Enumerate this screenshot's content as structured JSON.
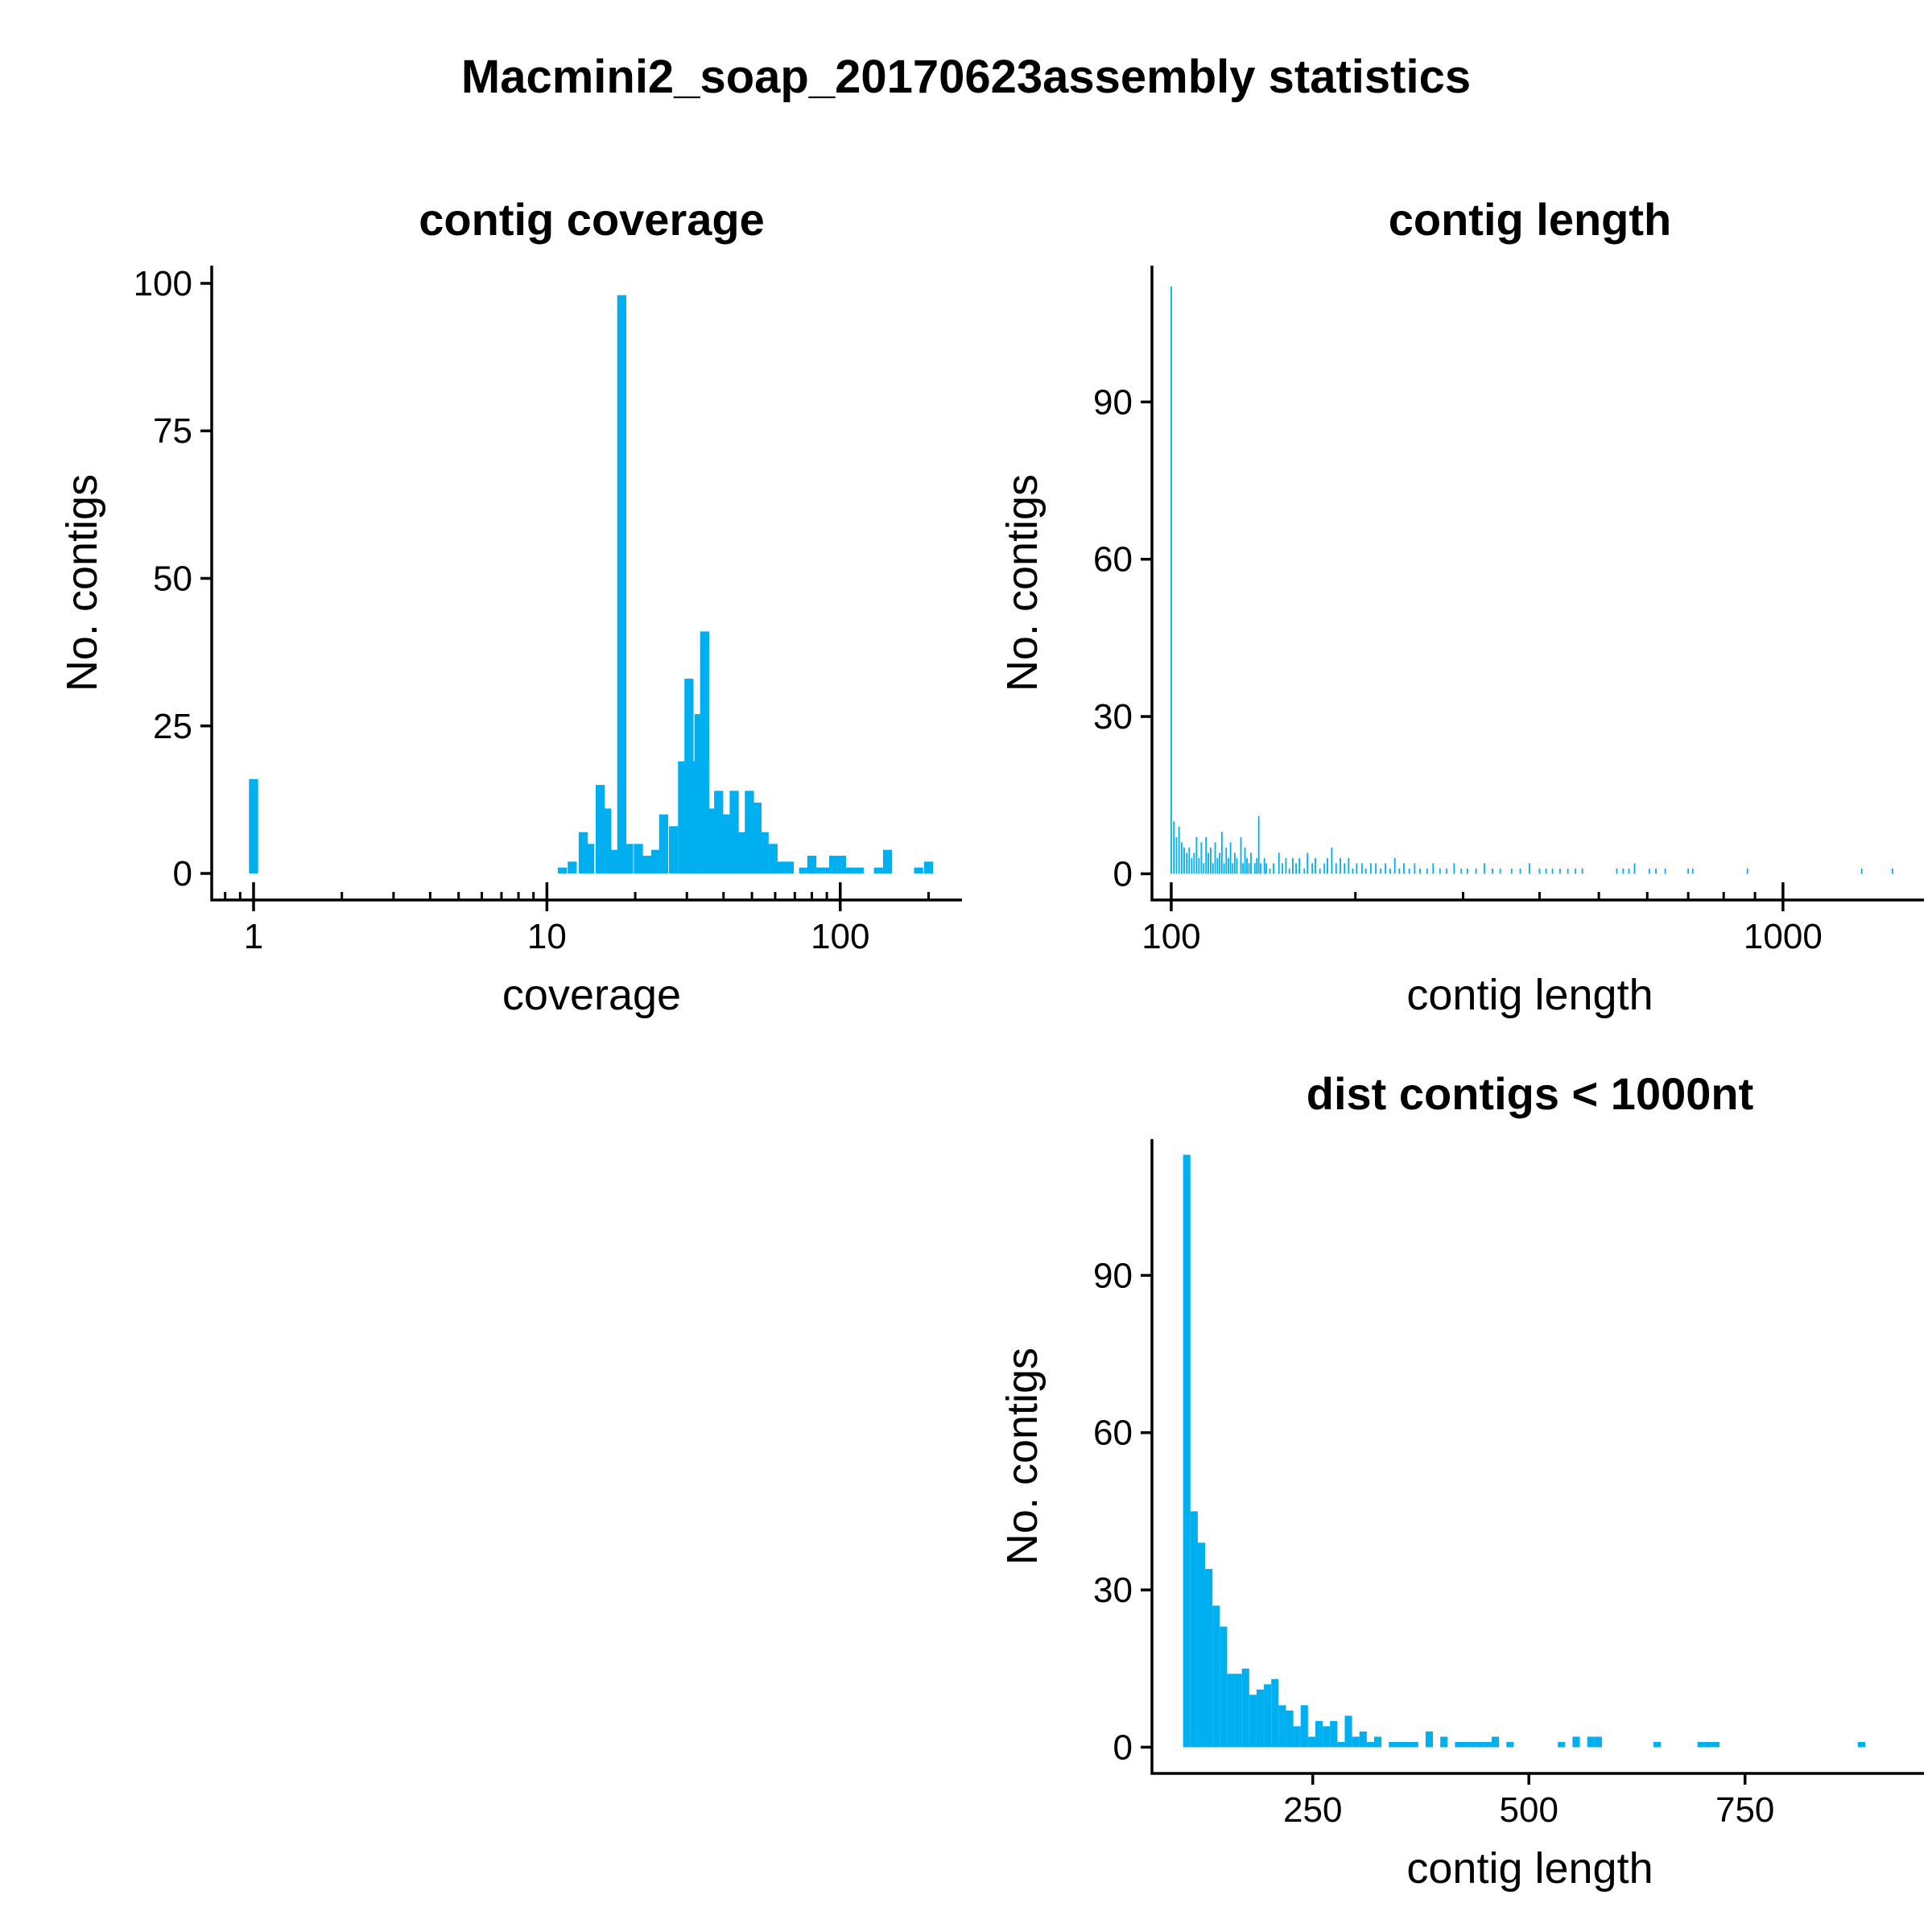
{
  "title": "Macmini2_soap_20170623assembly statistics",
  "colors": {
    "bar": "#00AFEF",
    "axis": "#000000"
  },
  "chart_data": [
    {
      "id": "coverage",
      "type": "bar",
      "title": "contig coverage",
      "xlabel": "coverage",
      "ylabel": "No. contigs",
      "xscale": "log10",
      "xlim": [
        0.72,
        260
      ],
      "ylim": [
        -4.5,
        103
      ],
      "xticks": [
        {
          "value": 1,
          "label": "1"
        },
        {
          "value": 10,
          "label": "10"
        },
        {
          "value": 100,
          "label": "100"
        }
      ],
      "yticks": [
        {
          "value": 0,
          "label": "0"
        },
        {
          "value": 25,
          "label": "25"
        },
        {
          "value": 50,
          "label": "50"
        },
        {
          "value": 75,
          "label": "75"
        },
        {
          "value": 100,
          "label": "100"
        }
      ],
      "minor_xticks": [
        0.8,
        0.9,
        2,
        3,
        4,
        5,
        6,
        7,
        8,
        9,
        20,
        30,
        40,
        50,
        60,
        70,
        80,
        90,
        200
      ],
      "bins": [
        {
          "x": 1.0,
          "count": 16
        },
        {
          "x": 11.3,
          "count": 1
        },
        {
          "x": 12.2,
          "count": 2
        },
        {
          "x": 13.3,
          "count": 7
        },
        {
          "x": 14.0,
          "count": 5
        },
        {
          "x": 15.2,
          "count": 15
        },
        {
          "x": 16.0,
          "count": 11
        },
        {
          "x": 17.0,
          "count": 4
        },
        {
          "x": 18.0,
          "count": 98
        },
        {
          "x": 19.0,
          "count": 5
        },
        {
          "x": 20.5,
          "count": 5
        },
        {
          "x": 22.0,
          "count": 3
        },
        {
          "x": 23.5,
          "count": 4
        },
        {
          "x": 25.0,
          "count": 10
        },
        {
          "x": 27.0,
          "count": 8
        },
        {
          "x": 29.0,
          "count": 19
        },
        {
          "x": 30.5,
          "count": 33
        },
        {
          "x": 31.8,
          "count": 19
        },
        {
          "x": 33.0,
          "count": 27
        },
        {
          "x": 34.5,
          "count": 41
        },
        {
          "x": 36.0,
          "count": 11
        },
        {
          "x": 38.5,
          "count": 14
        },
        {
          "x": 41.0,
          "count": 10
        },
        {
          "x": 43.5,
          "count": 14
        },
        {
          "x": 46.0,
          "count": 7
        },
        {
          "x": 49.0,
          "count": 14
        },
        {
          "x": 52.0,
          "count": 12
        },
        {
          "x": 55.0,
          "count": 7
        },
        {
          "x": 59.0,
          "count": 5
        },
        {
          "x": 63.0,
          "count": 2
        },
        {
          "x": 67.0,
          "count": 2
        },
        {
          "x": 75.0,
          "count": 1
        },
        {
          "x": 80.0,
          "count": 3
        },
        {
          "x": 85.0,
          "count": 1
        },
        {
          "x": 90.0,
          "count": 1
        },
        {
          "x": 95.0,
          "count": 3
        },
        {
          "x": 101.0,
          "count": 3
        },
        {
          "x": 108.0,
          "count": 1
        },
        {
          "x": 116.0,
          "count": 1
        },
        {
          "x": 135.0,
          "count": 1
        },
        {
          "x": 145.0,
          "count": 4
        },
        {
          "x": 185.0,
          "count": 1
        },
        {
          "x": 200.0,
          "count": 2
        }
      ]
    },
    {
      "id": "length",
      "type": "bar",
      "title": "contig length",
      "xlabel": "contig length",
      "ylabel": "No. contigs",
      "xscale": "log10",
      "xlim": [
        93,
        1700
      ],
      "ylim": [
        -5,
        116
      ],
      "xticks": [
        {
          "value": 100,
          "label": "100"
        },
        {
          "value": 1000,
          "label": "1000"
        }
      ],
      "yticks": [
        {
          "value": 0,
          "label": "0"
        },
        {
          "value": 30,
          "label": "30"
        },
        {
          "value": 60,
          "label": "60"
        },
        {
          "value": 90,
          "label": "90"
        }
      ],
      "minor_xticks": [
        200,
        300,
        400,
        500,
        600,
        700,
        800,
        900
      ],
      "bins": [
        {
          "x": 100,
          "count": 112
        },
        {
          "x": 101,
          "count": 10
        },
        {
          "x": 102,
          "count": 7
        },
        {
          "x": 103,
          "count": 9
        },
        {
          "x": 104,
          "count": 6
        },
        {
          "x": 105,
          "count": 5
        },
        {
          "x": 106,
          "count": 4
        },
        {
          "x": 107,
          "count": 5
        },
        {
          "x": 108,
          "count": 3
        },
        {
          "x": 109,
          "count": 4
        },
        {
          "x": 110,
          "count": 7
        },
        {
          "x": 111,
          "count": 3
        },
        {
          "x": 112,
          "count": 6
        },
        {
          "x": 113,
          "count": 2
        },
        {
          "x": 114,
          "count": 7
        },
        {
          "x": 115,
          "count": 4
        },
        {
          "x": 116,
          "count": 5
        },
        {
          "x": 117,
          "count": 2
        },
        {
          "x": 118,
          "count": 6
        },
        {
          "x": 119,
          "count": 3
        },
        {
          "x": 120,
          "count": 4
        },
        {
          "x": 121,
          "count": 8
        },
        {
          "x": 122,
          "count": 2
        },
        {
          "x": 123,
          "count": 5
        },
        {
          "x": 124,
          "count": 3
        },
        {
          "x": 125,
          "count": 6
        },
        {
          "x": 126,
          "count": 2
        },
        {
          "x": 127,
          "count": 4
        },
        {
          "x": 128,
          "count": 3
        },
        {
          "x": 130,
          "count": 7
        },
        {
          "x": 131,
          "count": 2
        },
        {
          "x": 132,
          "count": 5
        },
        {
          "x": 133,
          "count": 3
        },
        {
          "x": 134,
          "count": 2
        },
        {
          "x": 135,
          "count": 4
        },
        {
          "x": 137,
          "count": 2
        },
        {
          "x": 138,
          "count": 3
        },
        {
          "x": 139,
          "count": 11
        },
        {
          "x": 140,
          "count": 2
        },
        {
          "x": 142,
          "count": 3
        },
        {
          "x": 143,
          "count": 2
        },
        {
          "x": 145,
          "count": 1
        },
        {
          "x": 147,
          "count": 2
        },
        {
          "x": 150,
          "count": 4
        },
        {
          "x": 152,
          "count": 2
        },
        {
          "x": 154,
          "count": 3
        },
        {
          "x": 156,
          "count": 1
        },
        {
          "x": 158,
          "count": 3
        },
        {
          "x": 160,
          "count": 2
        },
        {
          "x": 162,
          "count": 3
        },
        {
          "x": 165,
          "count": 1
        },
        {
          "x": 167,
          "count": 4
        },
        {
          "x": 170,
          "count": 2
        },
        {
          "x": 172,
          "count": 3
        },
        {
          "x": 175,
          "count": 1
        },
        {
          "x": 178,
          "count": 2
        },
        {
          "x": 180,
          "count": 3
        },
        {
          "x": 183,
          "count": 5
        },
        {
          "x": 186,
          "count": 2
        },
        {
          "x": 189,
          "count": 3
        },
        {
          "x": 192,
          "count": 2
        },
        {
          "x": 195,
          "count": 3
        },
        {
          "x": 198,
          "count": 1
        },
        {
          "x": 201,
          "count": 2
        },
        {
          "x": 205,
          "count": 2
        },
        {
          "x": 208,
          "count": 1
        },
        {
          "x": 212,
          "count": 2
        },
        {
          "x": 216,
          "count": 2
        },
        {
          "x": 220,
          "count": 1
        },
        {
          "x": 224,
          "count": 2
        },
        {
          "x": 228,
          "count": 1
        },
        {
          "x": 232,
          "count": 3
        },
        {
          "x": 236,
          "count": 1
        },
        {
          "x": 240,
          "count": 2
        },
        {
          "x": 245,
          "count": 1
        },
        {
          "x": 250,
          "count": 2
        },
        {
          "x": 255,
          "count": 1
        },
        {
          "x": 262,
          "count": 1
        },
        {
          "x": 268,
          "count": 2
        },
        {
          "x": 275,
          "count": 1
        },
        {
          "x": 282,
          "count": 1
        },
        {
          "x": 290,
          "count": 2
        },
        {
          "x": 298,
          "count": 1
        },
        {
          "x": 305,
          "count": 1
        },
        {
          "x": 315,
          "count": 1
        },
        {
          "x": 325,
          "count": 2
        },
        {
          "x": 335,
          "count": 1
        },
        {
          "x": 345,
          "count": 1
        },
        {
          "x": 360,
          "count": 1
        },
        {
          "x": 372,
          "count": 1
        },
        {
          "x": 385,
          "count": 2
        },
        {
          "x": 400,
          "count": 1
        },
        {
          "x": 410,
          "count": 1
        },
        {
          "x": 420,
          "count": 1
        },
        {
          "x": 432,
          "count": 1
        },
        {
          "x": 445,
          "count": 1
        },
        {
          "x": 458,
          "count": 1
        },
        {
          "x": 470,
          "count": 1
        },
        {
          "x": 535,
          "count": 1
        },
        {
          "x": 548,
          "count": 1
        },
        {
          "x": 560,
          "count": 1
        },
        {
          "x": 572,
          "count": 2
        },
        {
          "x": 605,
          "count": 1
        },
        {
          "x": 620,
          "count": 1
        },
        {
          "x": 642,
          "count": 1
        },
        {
          "x": 700,
          "count": 1
        },
        {
          "x": 712,
          "count": 1
        },
        {
          "x": 875,
          "count": 1
        },
        {
          "x": 1345,
          "count": 1
        },
        {
          "x": 1510,
          "count": 1
        }
      ]
    },
    {
      "id": "dist",
      "type": "bar",
      "title": "dist contigs < 1000nt",
      "xlabel": "contig length",
      "ylabel": "No. contigs",
      "xscale": "linear",
      "bin_width": 8.5,
      "xlim": [
        64,
        957
      ],
      "ylim": [
        -5,
        116
      ],
      "xticks": [
        {
          "value": 250,
          "label": "250"
        },
        {
          "value": 500,
          "label": "500"
        },
        {
          "value": 750,
          "label": "750"
        }
      ],
      "yticks": [
        {
          "value": 0,
          "label": "0"
        },
        {
          "value": 30,
          "label": "30"
        },
        {
          "value": 60,
          "label": "60"
        },
        {
          "value": 90,
          "label": "90"
        }
      ],
      "bins": [
        {
          "x": 100,
          "count": 113
        },
        {
          "x": 108.5,
          "count": 45
        },
        {
          "x": 117,
          "count": 39
        },
        {
          "x": 125.5,
          "count": 34
        },
        {
          "x": 134,
          "count": 27
        },
        {
          "x": 142.5,
          "count": 23
        },
        {
          "x": 151,
          "count": 14
        },
        {
          "x": 159.5,
          "count": 14
        },
        {
          "x": 168,
          "count": 15
        },
        {
          "x": 176.5,
          "count": 10
        },
        {
          "x": 185,
          "count": 11
        },
        {
          "x": 193.5,
          "count": 12
        },
        {
          "x": 202,
          "count": 13
        },
        {
          "x": 210.5,
          "count": 8
        },
        {
          "x": 219,
          "count": 7
        },
        {
          "x": 227.5,
          "count": 4
        },
        {
          "x": 236,
          "count": 8
        },
        {
          "x": 244.5,
          "count": 2
        },
        {
          "x": 253,
          "count": 5
        },
        {
          "x": 261.5,
          "count": 4
        },
        {
          "x": 270,
          "count": 5
        },
        {
          "x": 278.5,
          "count": 1
        },
        {
          "x": 287,
          "count": 6
        },
        {
          "x": 295.5,
          "count": 2
        },
        {
          "x": 304,
          "count": 3
        },
        {
          "x": 312.5,
          "count": 1
        },
        {
          "x": 321,
          "count": 2
        },
        {
          "x": 338,
          "count": 1
        },
        {
          "x": 346.5,
          "count": 1
        },
        {
          "x": 355,
          "count": 1
        },
        {
          "x": 363.5,
          "count": 1
        },
        {
          "x": 380.5,
          "count": 3
        },
        {
          "x": 397.5,
          "count": 2
        },
        {
          "x": 414.5,
          "count": 1
        },
        {
          "x": 423,
          "count": 1
        },
        {
          "x": 431.5,
          "count": 1
        },
        {
          "x": 440,
          "count": 1
        },
        {
          "x": 448.5,
          "count": 1
        },
        {
          "x": 457,
          "count": 2
        },
        {
          "x": 474,
          "count": 1
        },
        {
          "x": 533.5,
          "count": 1
        },
        {
          "x": 550.5,
          "count": 2
        },
        {
          "x": 567.5,
          "count": 2
        },
        {
          "x": 576,
          "count": 2
        },
        {
          "x": 644,
          "count": 1
        },
        {
          "x": 695,
          "count": 1
        },
        {
          "x": 703.5,
          "count": 1
        },
        {
          "x": 712,
          "count": 1
        },
        {
          "x": 880.5,
          "count": 1
        }
      ]
    }
  ]
}
